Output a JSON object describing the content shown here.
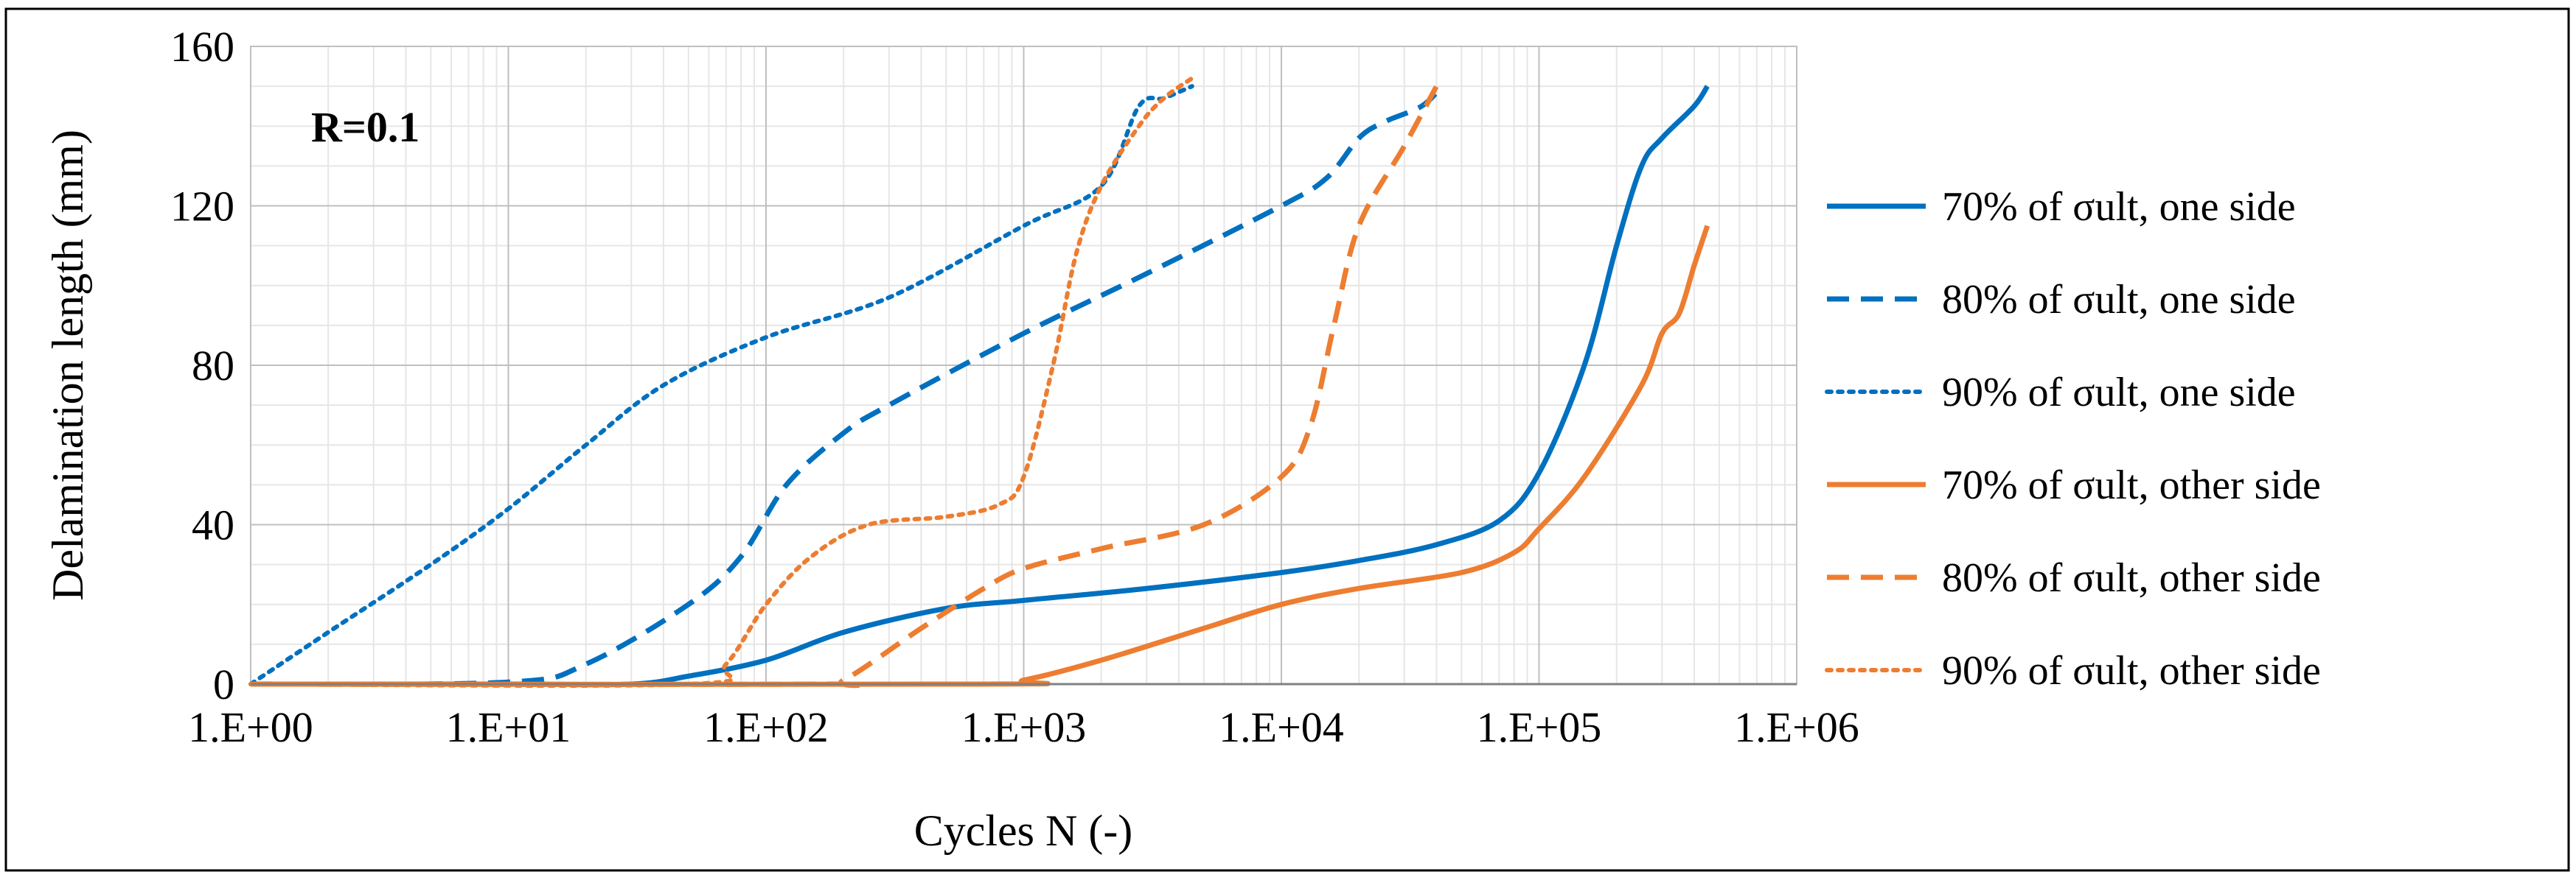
{
  "chart_data": {
    "type": "line",
    "title": "",
    "annotation": "R=0.1",
    "xlabel": "Cycles N (-)",
    "ylabel": "Delamination length (mm)",
    "xscale": "log10",
    "xlim": [
      1,
      1000000
    ],
    "ylim": [
      0,
      160
    ],
    "xticks": [
      1,
      10,
      100,
      1000,
      10000,
      100000,
      1000000
    ],
    "xtick_labels": [
      "1.E+00",
      "1.E+01",
      "1.E+02",
      "1.E+03",
      "1.E+04",
      "1.E+05",
      "1.E+06"
    ],
    "yticks": [
      0,
      40,
      80,
      120,
      160
    ],
    "ytick_labels": [
      "0",
      "40",
      "80",
      "120",
      "160"
    ],
    "grid": true,
    "legend_position": "right",
    "series": [
      {
        "name": "70% of σult, one side",
        "color": "#0070C0",
        "dash": "solid",
        "points": [
          [
            1,
            0
          ],
          [
            10,
            0
          ],
          [
            30,
            0
          ],
          [
            50,
            2
          ],
          [
            100,
            6
          ],
          [
            200,
            13
          ],
          [
            500,
            19
          ],
          [
            1000,
            21
          ],
          [
            3000,
            24
          ],
          [
            10000,
            28
          ],
          [
            20000,
            31
          ],
          [
            40000,
            35
          ],
          [
            70000,
            41
          ],
          [
            100000,
            53
          ],
          [
            150000,
            80
          ],
          [
            200000,
            110
          ],
          [
            250000,
            130
          ],
          [
            300000,
            137
          ],
          [
            400000,
            145
          ],
          [
            450000,
            150
          ]
        ]
      },
      {
        "name": "80% of σult, one side",
        "color": "#0070C0",
        "dash": "dashed",
        "points": [
          [
            1,
            0
          ],
          [
            10,
            0.5
          ],
          [
            20,
            5
          ],
          [
            50,
            20
          ],
          [
            80,
            32
          ],
          [
            120,
            50
          ],
          [
            200,
            63
          ],
          [
            300,
            70
          ],
          [
            1000,
            88
          ],
          [
            3000,
            103
          ],
          [
            10000,
            120
          ],
          [
            15000,
            127
          ],
          [
            20000,
            137
          ],
          [
            25000,
            141
          ],
          [
            35000,
            145
          ],
          [
            42000,
            150
          ]
        ]
      },
      {
        "name": "90% of σult, one side",
        "color": "#0070C0",
        "dash": "dotted",
        "points": [
          [
            1,
            0
          ],
          [
            2,
            13
          ],
          [
            5,
            30
          ],
          [
            10,
            44
          ],
          [
            20,
            60
          ],
          [
            40,
            75
          ],
          [
            100,
            87
          ],
          [
            300,
            97
          ],
          [
            1000,
            115
          ],
          [
            2000,
            125
          ],
          [
            2800,
            145
          ],
          [
            3500,
            147
          ],
          [
            4500,
            150
          ]
        ]
      },
      {
        "name": "70% of σult, other side",
        "color": "#ED7D31",
        "dash": "solid",
        "points": [
          [
            1,
            0
          ],
          [
            700,
            0
          ],
          [
            1000,
            1
          ],
          [
            2000,
            6
          ],
          [
            5000,
            14
          ],
          [
            10000,
            20
          ],
          [
            20000,
            24
          ],
          [
            50000,
            28
          ],
          [
            80000,
            33
          ],
          [
            100000,
            39
          ],
          [
            150000,
            52
          ],
          [
            250000,
            75
          ],
          [
            300000,
            88
          ],
          [
            350000,
            93
          ],
          [
            400000,
            105
          ],
          [
            450000,
            115
          ]
        ]
      },
      {
        "name": "80% of σult, other side",
        "color": "#ED7D31",
        "dash": "dashed",
        "points": [
          [
            1,
            0
          ],
          [
            150,
            0
          ],
          [
            200,
            1
          ],
          [
            400,
            14
          ],
          [
            700,
            24
          ],
          [
            1000,
            29
          ],
          [
            2000,
            34
          ],
          [
            5000,
            40
          ],
          [
            10000,
            52
          ],
          [
            13000,
            65
          ],
          [
            16000,
            90
          ],
          [
            20000,
            115
          ],
          [
            30000,
            135
          ],
          [
            40000,
            150
          ]
        ]
      },
      {
        "name": "90% of σult, other side",
        "color": "#ED7D31",
        "dash": "dotted",
        "points": [
          [
            1,
            0
          ],
          [
            50,
            0
          ],
          [
            70,
            5
          ],
          [
            100,
            20
          ],
          [
            150,
            32
          ],
          [
            250,
            40
          ],
          [
            500,
            42
          ],
          [
            800,
            45
          ],
          [
            1000,
            52
          ],
          [
            1300,
            80
          ],
          [
            1600,
            108
          ],
          [
            2000,
            125
          ],
          [
            2800,
            140
          ],
          [
            3500,
            147
          ],
          [
            4500,
            152
          ]
        ]
      }
    ]
  }
}
